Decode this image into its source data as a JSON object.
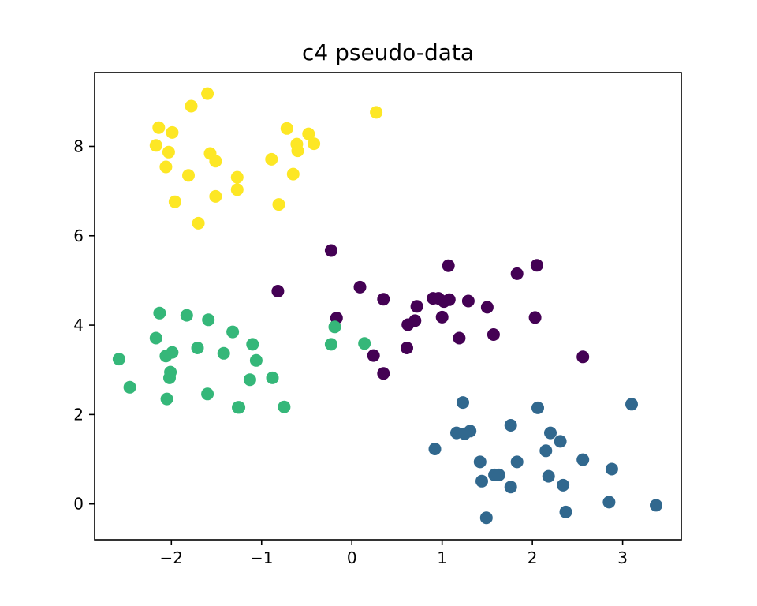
{
  "chart_data": {
    "type": "scatter",
    "title": "c4 pseudo-data",
    "xlabel": "",
    "ylabel": "",
    "xlim": [
      -2.85,
      3.65
    ],
    "ylim": [
      -0.8,
      9.65
    ],
    "xticks": [
      -2,
      -1,
      0,
      1,
      2,
      3
    ],
    "yticks": [
      0,
      2,
      4,
      6,
      8
    ],
    "grid": false,
    "legend": "none",
    "colors": {
      "purple": "#440154",
      "blue": "#31688e",
      "green": "#35b779",
      "yellow": "#fde725"
    },
    "series": [
      {
        "color": "#440154",
        "points": [
          [
            -0.23,
            5.67
          ],
          [
            -0.82,
            4.76
          ],
          [
            0.09,
            4.85
          ],
          [
            0.35,
            4.58
          ],
          [
            -0.17,
            4.16
          ],
          [
            0.72,
            4.42
          ],
          [
            0.9,
            4.6
          ],
          [
            0.96,
            4.6
          ],
          [
            1.02,
            4.53
          ],
          [
            1.08,
            4.57
          ],
          [
            1.07,
            5.33
          ],
          [
            1.29,
            4.54
          ],
          [
            1.5,
            4.4
          ],
          [
            1.83,
            5.15
          ],
          [
            2.05,
            5.34
          ],
          [
            2.03,
            4.17
          ],
          [
            1.0,
            4.18
          ],
          [
            0.7,
            4.1
          ],
          [
            0.62,
            4.01
          ],
          [
            1.19,
            3.71
          ],
          [
            1.57,
            3.79
          ],
          [
            0.61,
            3.49
          ],
          [
            0.24,
            3.32
          ],
          [
            0.35,
            2.92
          ],
          [
            2.56,
            3.29
          ]
        ]
      },
      {
        "color": "#31688e",
        "points": [
          [
            1.23,
            2.27
          ],
          [
            2.06,
            2.15
          ],
          [
            3.1,
            2.23
          ],
          [
            1.76,
            1.76
          ],
          [
            1.16,
            1.59
          ],
          [
            1.25,
            1.57
          ],
          [
            1.31,
            1.63
          ],
          [
            2.2,
            1.59
          ],
          [
            2.31,
            1.4
          ],
          [
            2.15,
            1.19
          ],
          [
            0.92,
            1.23
          ],
          [
            1.42,
            0.94
          ],
          [
            1.83,
            0.94
          ],
          [
            2.56,
            0.99
          ],
          [
            2.88,
            0.78
          ],
          [
            1.44,
            0.51
          ],
          [
            1.58,
            0.65
          ],
          [
            1.63,
            0.65
          ],
          [
            2.18,
            0.62
          ],
          [
            2.34,
            0.42
          ],
          [
            1.76,
            0.38
          ],
          [
            2.85,
            0.04
          ],
          [
            3.37,
            -0.03
          ],
          [
            2.37,
            -0.18
          ],
          [
            1.49,
            -0.31
          ]
        ]
      },
      {
        "color": "#35b779",
        "points": [
          [
            -2.13,
            4.27
          ],
          [
            -1.83,
            4.22
          ],
          [
            -1.59,
            4.12
          ],
          [
            -2.17,
            3.71
          ],
          [
            -1.32,
            3.85
          ],
          [
            -1.99,
            3.39
          ],
          [
            -1.71,
            3.49
          ],
          [
            -2.06,
            3.31
          ],
          [
            -1.42,
            3.37
          ],
          [
            -1.1,
            3.57
          ],
          [
            -1.06,
            3.21
          ],
          [
            -2.58,
            3.24
          ],
          [
            -2.01,
            2.95
          ],
          [
            -2.02,
            2.82
          ],
          [
            -1.13,
            2.78
          ],
          [
            -0.88,
            2.82
          ],
          [
            -2.46,
            2.61
          ],
          [
            -1.6,
            2.46
          ],
          [
            -2.05,
            2.35
          ],
          [
            -1.26,
            2.16
          ],
          [
            -1.25,
            2.16
          ],
          [
            -0.75,
            2.17
          ],
          [
            -0.19,
            3.96
          ],
          [
            -0.23,
            3.57
          ],
          [
            0.14,
            3.59
          ]
        ]
      },
      {
        "color": "#fde725",
        "points": [
          [
            -1.6,
            9.18
          ],
          [
            -1.78,
            8.9
          ],
          [
            0.27,
            8.76
          ],
          [
            -2.14,
            8.42
          ],
          [
            -1.99,
            8.31
          ],
          [
            -0.72,
            8.4
          ],
          [
            -0.48,
            8.28
          ],
          [
            -2.17,
            8.02
          ],
          [
            -2.03,
            7.87
          ],
          [
            -0.61,
            8.05
          ],
          [
            -0.42,
            8.06
          ],
          [
            -1.57,
            7.84
          ],
          [
            -0.6,
            7.9
          ],
          [
            -1.51,
            7.67
          ],
          [
            -0.89,
            7.71
          ],
          [
            -2.06,
            7.54
          ],
          [
            -1.81,
            7.35
          ],
          [
            -1.27,
            7.31
          ],
          [
            -0.65,
            7.38
          ],
          [
            -1.27,
            7.03
          ],
          [
            -1.51,
            6.88
          ],
          [
            -1.96,
            6.76
          ],
          [
            -0.81,
            6.7
          ],
          [
            -1.7,
            6.28
          ]
        ]
      }
    ]
  }
}
